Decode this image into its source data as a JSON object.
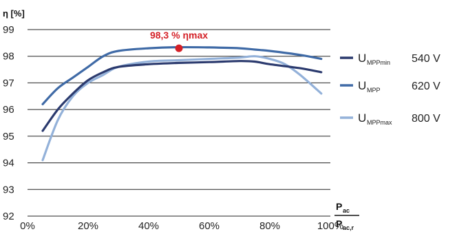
{
  "chart_data": {
    "type": "line",
    "ylabel": "η [%]",
    "xlabel_main": "P",
    "xlabel_num_sub": "ac",
    "xlabel_den_sub": "ac,r",
    "xlim": [
      0,
      100
    ],
    "ylim": [
      92,
      99
    ],
    "x_ticks": [
      "0%",
      "20%",
      "40%",
      "60%",
      "80%",
      "100%"
    ],
    "x_tick_values": [
      0,
      20,
      40,
      60,
      80,
      100
    ],
    "y_ticks": [
      "92",
      "93",
      "94",
      "95",
      "96",
      "97",
      "98",
      "99"
    ],
    "y_tick_values": [
      92,
      93,
      94,
      95,
      96,
      97,
      98,
      99
    ],
    "grid": "horizontal",
    "legend_position": "right",
    "series": [
      {
        "name": "U",
        "sub": "MPPmin",
        "voltage": "540 V",
        "color": "#2b3a6e",
        "x": [
          5,
          10,
          15,
          20,
          25,
          30,
          40,
          50,
          60,
          70,
          75,
          80,
          90,
          97
        ],
        "y": [
          95.2,
          96.0,
          96.6,
          97.1,
          97.4,
          97.6,
          97.7,
          97.75,
          97.78,
          97.82,
          97.8,
          97.7,
          97.55,
          97.4
        ]
      },
      {
        "name": "U",
        "sub": "MPP",
        "voltage": "620 V",
        "color": "#3f6aa6",
        "x": [
          5,
          10,
          15,
          20,
          25,
          30,
          40,
          50,
          60,
          70,
          75,
          80,
          90,
          97
        ],
        "y": [
          96.2,
          96.8,
          97.2,
          97.6,
          98.0,
          98.2,
          98.3,
          98.34,
          98.33,
          98.3,
          98.25,
          98.2,
          98.05,
          97.9
        ]
      },
      {
        "name": "U",
        "sub": "MPPmax",
        "voltage": "800 V",
        "color": "#93b1d9",
        "x": [
          5,
          10,
          15,
          20,
          25,
          30,
          40,
          50,
          60,
          70,
          75,
          80,
          85,
          90,
          97
        ],
        "y": [
          94.1,
          95.6,
          96.5,
          97.0,
          97.3,
          97.6,
          97.8,
          97.85,
          97.9,
          97.95,
          98.0,
          97.9,
          97.7,
          97.3,
          96.6
        ]
      }
    ],
    "peak": {
      "x": 50,
      "y": 98.3,
      "label": "98,3 % ηmax",
      "color": "#d42027"
    }
  }
}
